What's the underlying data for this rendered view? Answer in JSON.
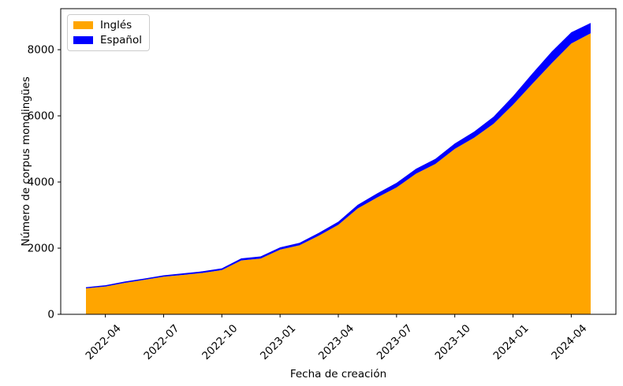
{
  "chart_data": {
    "type": "area",
    "stacked": true,
    "title": "",
    "xlabel": "Fecha de creación",
    "ylabel": "Número de corpus monolingües",
    "legend_position": "upper left",
    "grid": false,
    "ylim": [
      0,
      9240
    ],
    "y_ticks": [
      0,
      2000,
      4000,
      6000,
      8000
    ],
    "x": [
      "2022-03",
      "2022-04",
      "2022-05",
      "2022-06",
      "2022-07",
      "2022-08",
      "2022-09",
      "2022-10",
      "2022-11",
      "2022-12",
      "2023-01",
      "2023-02",
      "2023-03",
      "2023-04",
      "2023-05",
      "2023-06",
      "2023-07",
      "2023-08",
      "2023-09",
      "2023-10",
      "2023-11",
      "2023-12",
      "2024-01",
      "2024-02",
      "2024-03",
      "2024-04",
      "2024-05"
    ],
    "x_tick_labels": [
      "2022-04",
      "2022-07",
      "2022-10",
      "2023-01",
      "2023-04",
      "2023-07",
      "2023-10",
      "2024-01",
      "2024-04"
    ],
    "series": [
      {
        "name": "Inglés",
        "color": "#FFA500",
        "values": [
          785,
          840,
          950,
          1040,
          1135,
          1190,
          1250,
          1335,
          1630,
          1685,
          1955,
          2085,
          2380,
          2705,
          3200,
          3530,
          3835,
          4250,
          4545,
          5000,
          5340,
          5760,
          6335,
          6970,
          7595,
          8185,
          8495
        ]
      },
      {
        "name": "Español",
        "color": "#0000FF",
        "values": [
          35,
          38,
          40,
          42,
          45,
          48,
          50,
          55,
          60,
          65,
          70,
          78,
          85,
          95,
          110,
          125,
          140,
          150,
          155,
          165,
          185,
          215,
          260,
          315,
          355,
          340,
          315
        ]
      }
    ]
  }
}
